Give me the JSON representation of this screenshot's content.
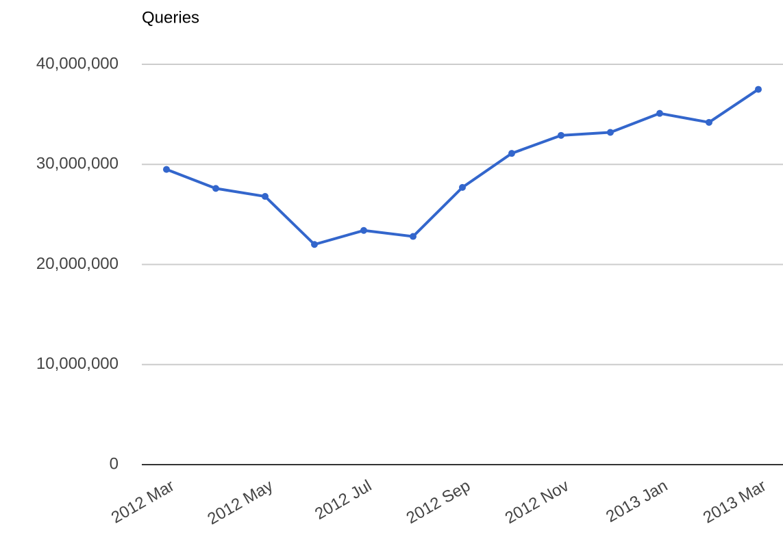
{
  "chart_data": {
    "type": "line",
    "title": "Queries",
    "categories": [
      "2012 Mar",
      null,
      "2012 May",
      null,
      "2012 Jul",
      null,
      "2012 Sep",
      null,
      "2012 Nov",
      null,
      "2013 Jan",
      null,
      "2013 Mar"
    ],
    "series": [
      {
        "name": "Queries",
        "color": "#3366cc",
        "values": [
          29500000,
          27600000,
          26800000,
          22000000,
          23400000,
          22800000,
          27700000,
          31100000,
          32900000,
          33200000,
          35100000,
          34200000,
          37500000
        ]
      }
    ],
    "ylim": [
      0,
      40000000
    ],
    "yticks": [
      {
        "value": 0,
        "label": "0"
      },
      {
        "value": 10000000,
        "label": "10,000,000"
      },
      {
        "value": 20000000,
        "label": "20,000,000"
      },
      {
        "value": 30000000,
        "label": "30,000,000"
      },
      {
        "value": 40000000,
        "label": "40,000,000"
      }
    ],
    "grid": true
  }
}
